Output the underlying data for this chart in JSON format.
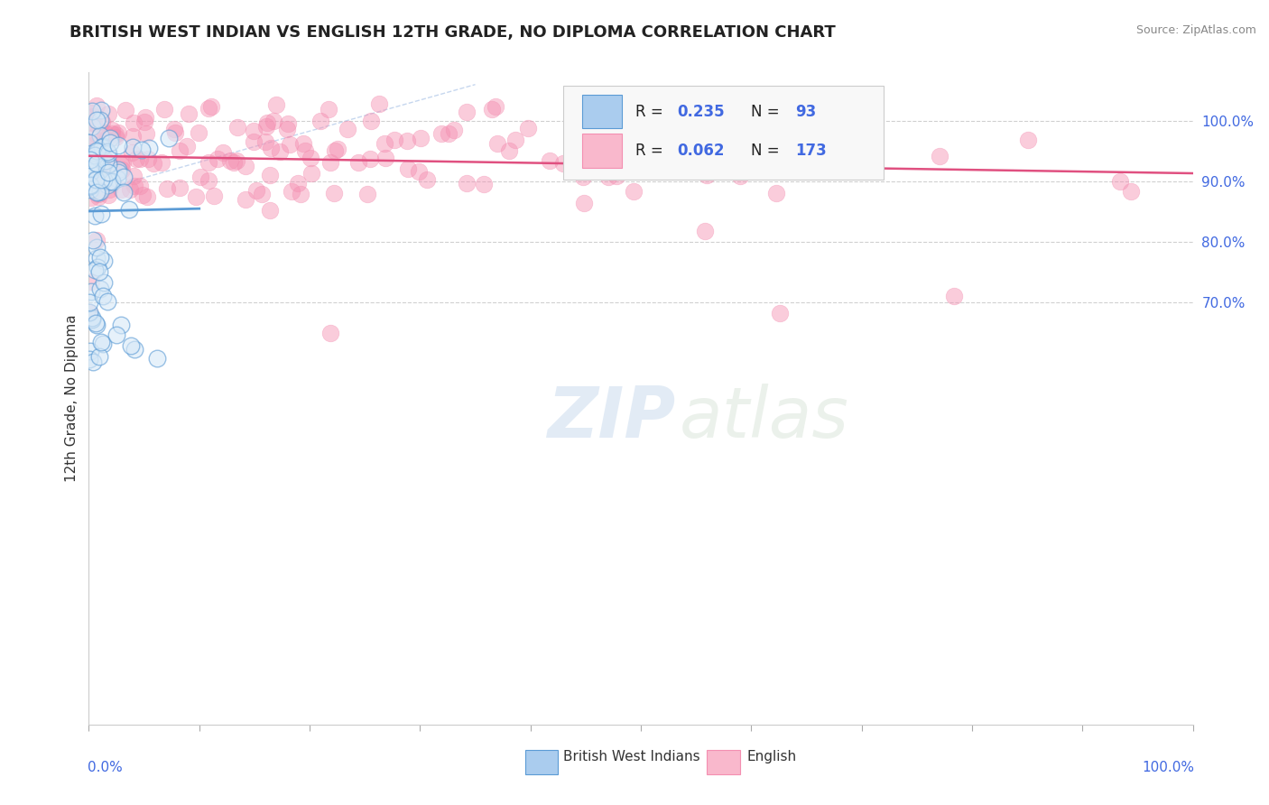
{
  "title": "BRITISH WEST INDIAN VS ENGLISH 12TH GRADE, NO DIPLOMA CORRELATION CHART",
  "source_text": "Source: ZipAtlas.com",
  "ylabel": "12th Grade, No Diploma",
  "legend_blue_R": "0.235",
  "legend_blue_N": "93",
  "legend_pink_R": "0.062",
  "legend_pink_N": "173",
  "legend_label_blue": "British West Indians",
  "legend_label_pink": "English",
  "blue_color": "#5b9bd5",
  "pink_color": "#f48fb1",
  "blue_line_color": "#5b9bd5",
  "pink_line_color": "#e05080",
  "diag_line_color": "#aec6e8",
  "watermark_line1": "ZIP",
  "watermark_line2": "atlas",
  "seed": 12345,
  "n_blue": 93,
  "n_pink": 173,
  "R_blue": 0.235,
  "R_pink": 0.062,
  "xmin": 0.0,
  "xmax": 1.0,
  "ymin": 0.0,
  "ymax": 1.08,
  "right_ytick_vals": [
    0.7,
    0.8,
    0.9,
    1.0
  ],
  "right_ytick_labels": [
    "70.0%",
    "80.0%",
    "90.0%",
    "100.0%"
  ],
  "background_color": "#ffffff",
  "title_fontsize": 13,
  "value_color": "#4169e1",
  "tick_label_color": "#4169e1",
  "grid_color": "#d0d0d0"
}
